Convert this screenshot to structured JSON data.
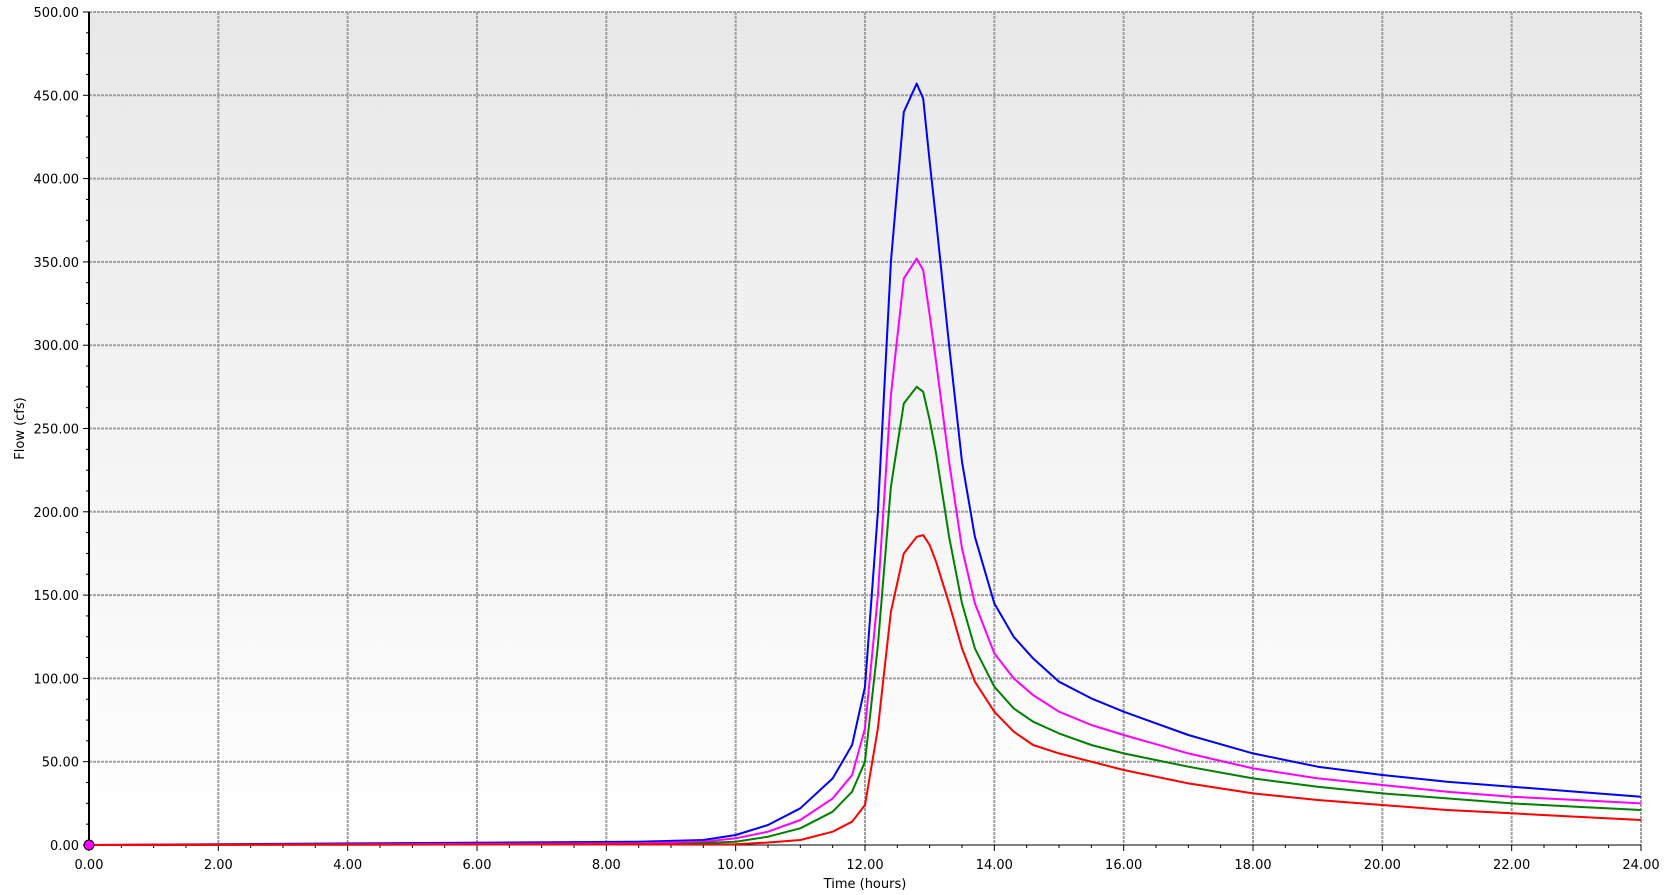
{
  "chart_data": {
    "type": "line",
    "title": "",
    "xlabel": "Time (hours)",
    "ylabel": "Flow (cfs)",
    "xlim": [
      0,
      24
    ],
    "ylim": [
      0,
      500
    ],
    "x_ticks": [
      0,
      2,
      4,
      6,
      8,
      10,
      12,
      14,
      16,
      18,
      20,
      22,
      24
    ],
    "y_ticks": [
      0,
      50,
      100,
      150,
      200,
      250,
      300,
      350,
      400,
      450,
      500
    ],
    "x_tick_labels": [
      "0.00",
      "2.00",
      "4.00",
      "6.00",
      "8.00",
      "10.00",
      "12.00",
      "14.00",
      "16.00",
      "18.00",
      "20.00",
      "22.00",
      "24.00"
    ],
    "y_tick_labels": [
      "0.00",
      "50.00",
      "100.00",
      "150.00",
      "200.00",
      "250.00",
      "300.00",
      "350.00",
      "400.00",
      "450.00",
      "500.00"
    ],
    "grid": true,
    "legend": "none",
    "background": [
      "#e8e8e8",
      "#ffffff"
    ],
    "grid_color": "#a0a0a0",
    "marker": {
      "x": 0,
      "y": 0,
      "color": "#ff00ff"
    },
    "series": [
      {
        "color": "#0000ff",
        "x": [
          0,
          4.5,
          8.5,
          9.5,
          10.0,
          10.5,
          11.0,
          11.5,
          11.8,
          12.0,
          12.2,
          12.4,
          12.6,
          12.8,
          12.9,
          13.0,
          13.1,
          13.3,
          13.5,
          13.7,
          14.0,
          14.3,
          14.6,
          15.0,
          15.5,
          16.0,
          17.0,
          18.0,
          19.0,
          20.0,
          21.0,
          22.0,
          23.0,
          24.0
        ],
        "y": [
          0,
          1,
          2,
          3,
          6,
          12,
          22,
          40,
          60,
          95,
          200,
          350,
          440,
          457,
          448,
          410,
          375,
          300,
          230,
          185,
          145,
          125,
          112,
          98,
          88,
          80,
          66,
          55,
          47,
          42,
          38,
          35,
          32,
          29
        ]
      },
      {
        "color": "#ff00ff",
        "x": [
          0,
          8.5,
          9.5,
          10.0,
          10.5,
          11.0,
          11.5,
          11.8,
          12.0,
          12.2,
          12.4,
          12.6,
          12.8,
          12.9,
          13.0,
          13.1,
          13.3,
          13.5,
          13.7,
          14.0,
          14.3,
          14.6,
          15.0,
          15.5,
          16.0,
          17.0,
          18.0,
          19.0,
          20.0,
          21.0,
          22.0,
          23.0,
          24.0
        ],
        "y": [
          0,
          1,
          2,
          4,
          8,
          15,
          28,
          42,
          70,
          150,
          270,
          340,
          352,
          345,
          318,
          290,
          230,
          178,
          145,
          115,
          100,
          90,
          80,
          72,
          66,
          55,
          46,
          40,
          36,
          32,
          29,
          27,
          25
        ]
      },
      {
        "color": "#008000",
        "x": [
          0,
          9.0,
          10.0,
          10.5,
          11.0,
          11.5,
          11.8,
          12.0,
          12.2,
          12.4,
          12.6,
          12.8,
          12.9,
          13.0,
          13.1,
          13.3,
          13.5,
          13.7,
          14.0,
          14.3,
          14.6,
          15.0,
          15.5,
          16.0,
          17.0,
          18.0,
          19.0,
          20.0,
          21.0,
          22.0,
          23.0,
          24.0
        ],
        "y": [
          0,
          0.5,
          2,
          5,
          10,
          20,
          32,
          50,
          120,
          215,
          265,
          275,
          272,
          255,
          235,
          185,
          145,
          118,
          95,
          82,
          74,
          67,
          60,
          55,
          47,
          40,
          35,
          31,
          28,
          25,
          23,
          21
        ]
      },
      {
        "color": "#ff0000",
        "x": [
          0,
          10.0,
          10.5,
          11.0,
          11.5,
          11.8,
          12.0,
          12.2,
          12.4,
          12.6,
          12.8,
          12.9,
          13.0,
          13.1,
          13.3,
          13.5,
          13.7,
          14.0,
          14.3,
          14.6,
          15.0,
          15.5,
          16.0,
          17.0,
          18.0,
          19.0,
          20.0,
          21.0,
          22.0,
          23.0,
          24.0
        ],
        "y": [
          0,
          0.5,
          1.5,
          3,
          8,
          14,
          24,
          70,
          140,
          175,
          185,
          186,
          180,
          170,
          145,
          118,
          98,
          80,
          68,
          60,
          55,
          50,
          45,
          37,
          31,
          27,
          24,
          21,
          19,
          17,
          15
        ]
      }
    ]
  }
}
